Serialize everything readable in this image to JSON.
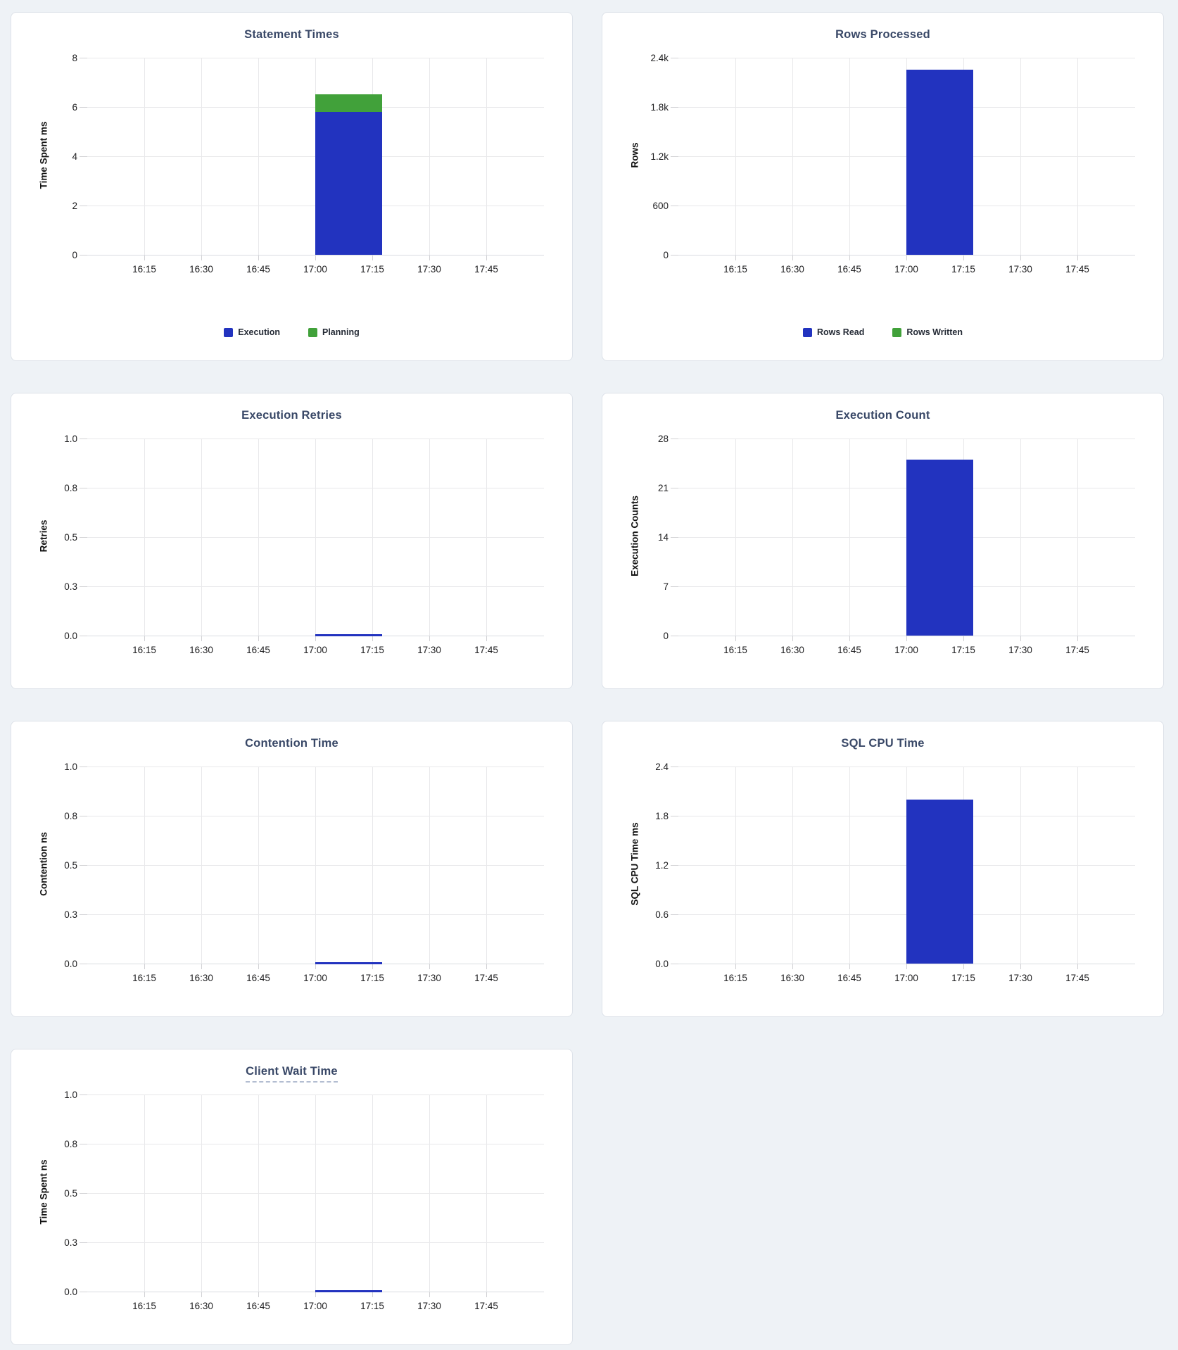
{
  "page": {
    "background": "#eef2f6"
  },
  "colors": {
    "series_blue": "#2233bf",
    "series_green": "#41a13a",
    "title_text": "#394867",
    "tick_label": "#1d1d1f",
    "gridline": "#e8e8ea",
    "card_background": "#ffffff",
    "card_border": "#dde2e9"
  },
  "chart_data": [
    {
      "type": "bar",
      "title": "Statement Times",
      "ylabel": "Time Spent ms",
      "xlabel": "",
      "ylim": [
        0,
        8
      ],
      "yticks": [
        "8",
        "6",
        "4",
        "2",
        "0"
      ],
      "xticks": [
        "16:15",
        "16:30",
        "16:45",
        "17:00",
        "17:15",
        "17:30",
        "17:45"
      ],
      "grid": "on",
      "legend_position": "bottom",
      "series": [
        {
          "name": "Execution",
          "color": "#2233bf",
          "x_start": "17:00",
          "x_end": "17:15",
          "value": 5.8
        },
        {
          "name": "Planning",
          "color": "#41a13a",
          "x_start": "17:00",
          "x_end": "17:15",
          "value": 0.7
        }
      ],
      "legend": [
        {
          "label": "Execution",
          "color": "#2233bf"
        },
        {
          "label": "Planning",
          "color": "#41a13a"
        }
      ]
    },
    {
      "type": "bar",
      "title": "Rows Processed",
      "ylabel": "Rows",
      "xlabel": "",
      "ylim": [
        0,
        2400
      ],
      "yticks": [
        "2.4k",
        "1.8k",
        "1.2k",
        "600",
        "0"
      ],
      "xticks": [
        "16:15",
        "16:30",
        "16:45",
        "17:00",
        "17:15",
        "17:30",
        "17:45"
      ],
      "grid": "on",
      "legend_position": "bottom",
      "series": [
        {
          "name": "Rows Read",
          "color": "#2233bf",
          "x_start": "17:00",
          "x_end": "17:15",
          "value": 2250
        },
        {
          "name": "Rows Written",
          "color": "#41a13a",
          "x_start": "17:00",
          "x_end": "17:15",
          "value": 0
        }
      ],
      "legend": [
        {
          "label": "Rows Read",
          "color": "#2233bf"
        },
        {
          "label": "Rows Written",
          "color": "#41a13a"
        }
      ]
    },
    {
      "type": "line",
      "title": "Execution Retries",
      "ylabel": "Retries",
      "xlabel": "",
      "ylim": [
        0,
        1
      ],
      "yticks": [
        "1.0",
        "0.8",
        "0.5",
        "0.3",
        "0.0"
      ],
      "xticks": [
        "16:15",
        "16:30",
        "16:45",
        "17:00",
        "17:15",
        "17:30",
        "17:45"
      ],
      "grid": "on",
      "legend_position": "none",
      "series": [
        {
          "name": "Retries",
          "color": "#2233bf",
          "x_start": "17:00",
          "x_end": "17:15",
          "value": 0
        }
      ],
      "legend": []
    },
    {
      "type": "bar",
      "title": "Execution Count",
      "ylabel": "Execution Counts",
      "xlabel": "",
      "ylim": [
        0,
        28
      ],
      "yticks": [
        "28",
        "21",
        "14",
        "7",
        "0"
      ],
      "xticks": [
        "16:15",
        "16:30",
        "16:45",
        "17:00",
        "17:15",
        "17:30",
        "17:45"
      ],
      "grid": "on",
      "legend_position": "none",
      "series": [
        {
          "name": "Execution Count",
          "color": "#2233bf",
          "x_start": "17:00",
          "x_end": "17:15",
          "value": 25
        }
      ],
      "legend": []
    },
    {
      "type": "line",
      "title": "Contention Time",
      "ylabel": "Contention ns",
      "xlabel": "",
      "ylim": [
        0,
        1
      ],
      "yticks": [
        "1.0",
        "0.8",
        "0.5",
        "0.3",
        "0.0"
      ],
      "xticks": [
        "16:15",
        "16:30",
        "16:45",
        "17:00",
        "17:15",
        "17:30",
        "17:45"
      ],
      "grid": "on",
      "legend_position": "none",
      "series": [
        {
          "name": "Contention",
          "color": "#2233bf",
          "x_start": "17:00",
          "x_end": "17:15",
          "value": 0
        }
      ],
      "legend": []
    },
    {
      "type": "bar",
      "title": "SQL CPU Time",
      "ylabel": "SQL CPU Time ms",
      "xlabel": "",
      "ylim": [
        0,
        2.4
      ],
      "yticks": [
        "2.4",
        "1.8",
        "1.2",
        "0.6",
        "0.0"
      ],
      "xticks": [
        "16:15",
        "16:30",
        "16:45",
        "17:00",
        "17:15",
        "17:30",
        "17:45"
      ],
      "grid": "on",
      "legend_position": "none",
      "series": [
        {
          "name": "SQL CPU Time",
          "color": "#2233bf",
          "x_start": "17:00",
          "x_end": "17:15",
          "value": 2.0
        }
      ],
      "legend": []
    },
    {
      "type": "line",
      "title": "Client Wait Time",
      "ylabel": "Time Spent ns",
      "xlabel": "",
      "ylim": [
        0,
        1
      ],
      "yticks": [
        "1.0",
        "0.8",
        "0.5",
        "0.3",
        "0.0"
      ],
      "xticks": [
        "16:15",
        "16:30",
        "16:45",
        "17:00",
        "17:15",
        "17:30",
        "17:45"
      ],
      "grid": "on",
      "legend_position": "none",
      "series": [
        {
          "name": "Client Wait",
          "color": "#2233bf",
          "x_start": "17:00",
          "x_end": "17:15",
          "value": 0
        }
      ],
      "legend": []
    }
  ]
}
